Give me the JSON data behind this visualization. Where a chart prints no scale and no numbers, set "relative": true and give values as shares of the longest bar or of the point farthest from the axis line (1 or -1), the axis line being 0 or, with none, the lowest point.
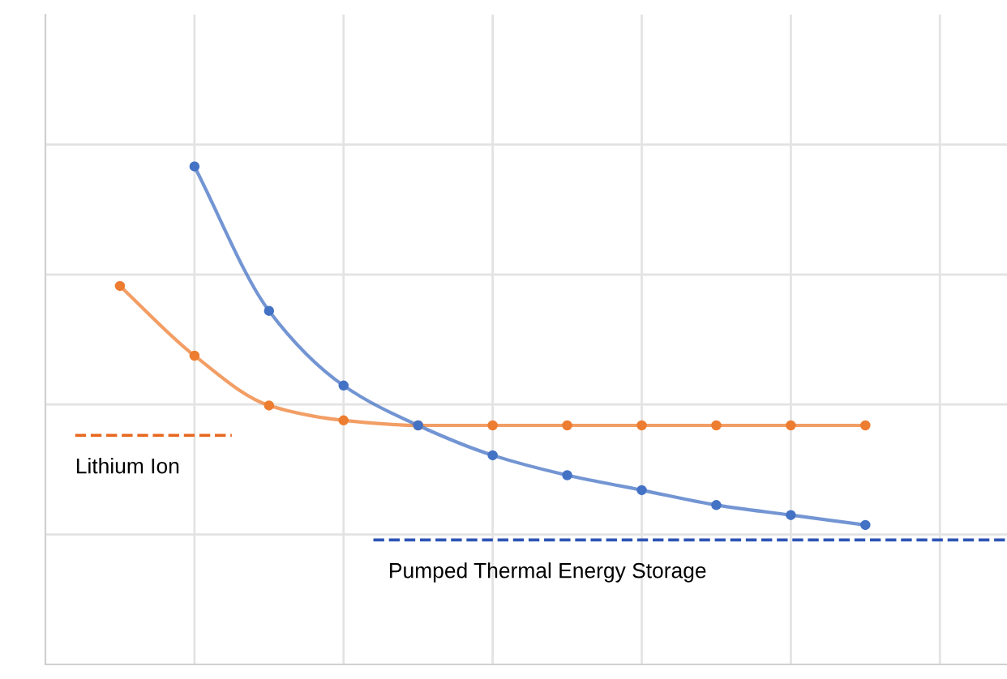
{
  "chart_data": {
    "type": "line",
    "relative": true,
    "categories": [
      null,
      null,
      null,
      null,
      null,
      null,
      null,
      null,
      null,
      null,
      null
    ],
    "series": [
      {
        "color": "#ed7d31",
        "values": [
          0.76,
          0.62,
          0.52,
          0.49,
          0.48,
          0.48,
          0.48,
          0.48,
          0.48,
          0.48,
          0.48
        ]
      },
      {
        "color": "#4472c4",
        "values": [
          null,
          1,
          0.71,
          0.56,
          0.48,
          0.42,
          0.38,
          0.35,
          0.32,
          0.3,
          0.28
        ]
      }
    ],
    "ref_lines": [
      {
        "axis": "y",
        "value": 0.46,
        "label": "Lithium Ion",
        "color": "#e8671e",
        "line_style": "dashed"
      },
      {
        "axis": "y",
        "value": 0.25,
        "label": "Pumped Thermal Energy Storage",
        "color": "#2f55b5",
        "line_style": "dashed"
      }
    ],
    "marker": "circle",
    "line_style": "solid",
    "grid": true,
    "legend": false
  }
}
